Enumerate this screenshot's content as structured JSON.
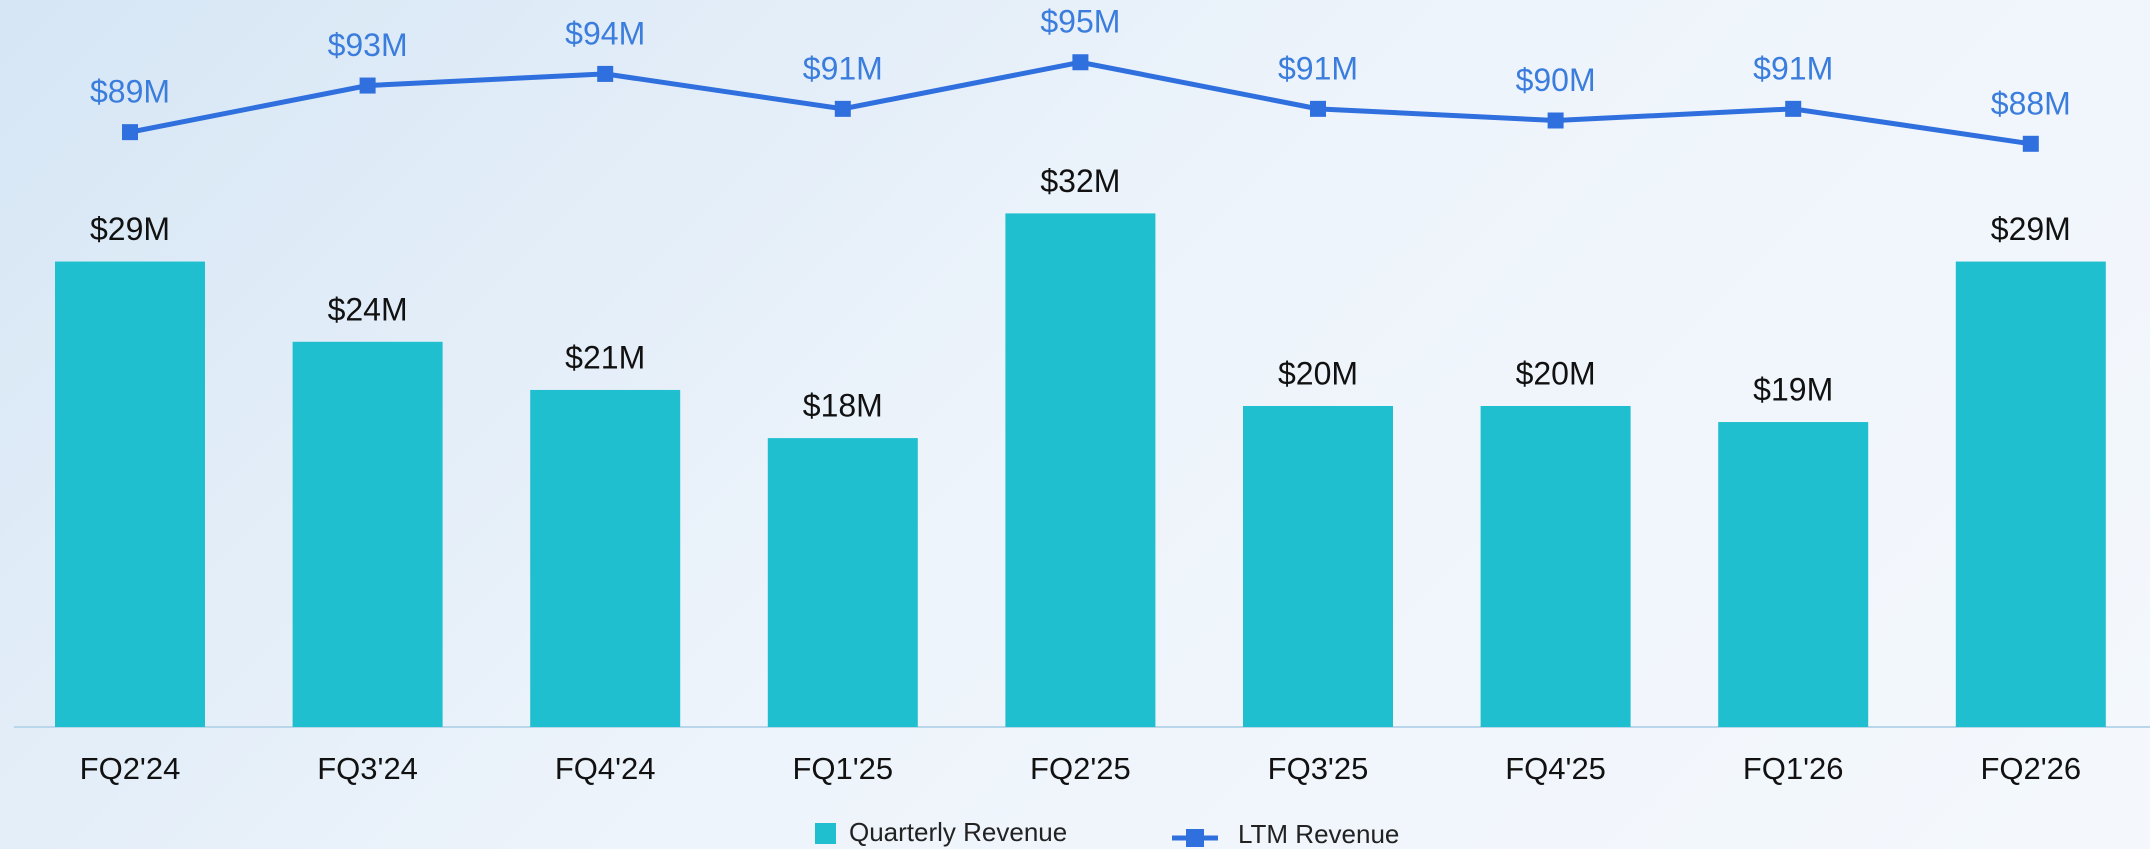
{
  "chart_data": {
    "type": "bar-line",
    "categories": [
      "FQ2'24",
      "FQ3'24",
      "FQ4'24",
      "FQ1'25",
      "FQ2'25",
      "FQ3'25",
      "FQ4'25",
      "FQ1'26",
      "FQ2'26"
    ],
    "series": [
      {
        "name": "Quarterly Revenue",
        "type": "bar",
        "color": "#1fbfcf",
        "values": [
          29,
          24,
          21,
          18,
          32,
          20,
          20,
          19,
          29
        ],
        "value_labels": [
          "$29M",
          "$24M",
          "$21M",
          "$18M",
          "$32M",
          "$20M",
          "$20M",
          "$19M",
          "$29M"
        ]
      },
      {
        "name": "LTM Revenue",
        "type": "line",
        "color": "#2f6fde",
        "values": [
          89,
          93,
          94,
          91,
          95,
          91,
          90,
          91,
          88
        ],
        "value_labels": [
          "$89M",
          "$93M",
          "$94M",
          "$91M",
          "$95M",
          "$91M",
          "$90M",
          "$91M",
          "$88M"
        ]
      }
    ]
  }
}
